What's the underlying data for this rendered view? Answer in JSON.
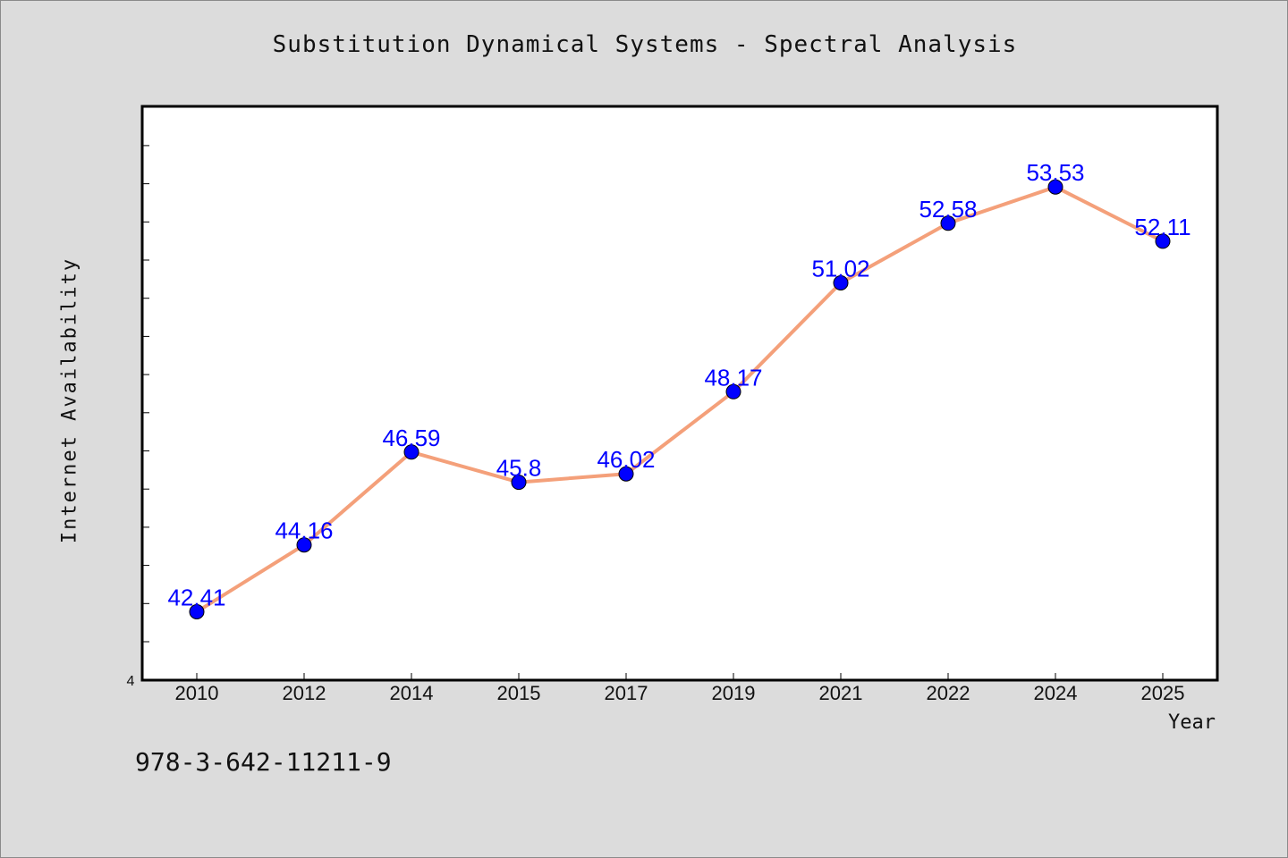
{
  "colors": {
    "background": "#dcdcdc",
    "plot_area": "#ffffff",
    "line": "#f4a07a",
    "marker": "#0000ff",
    "data_label": "#0000ff"
  },
  "footer": {
    "code": "978-3-642-11211-9"
  },
  "chart_data": {
    "type": "line",
    "title": "Substitution Dynamical Systems - Spectral Analysis",
    "xlabel": "Year",
    "ylabel": "Internet Availability",
    "categories": [
      "2010",
      "2012",
      "2014",
      "2015",
      "2017",
      "2019",
      "2021",
      "2022",
      "2024",
      "2025"
    ],
    "series": [
      {
        "values": [
          42.41,
          44.16,
          46.59,
          45.8,
          46.02,
          48.17,
          51.02,
          52.58,
          53.53,
          52.11
        ]
      }
    ],
    "data_labels": [
      "42.41",
      "44.16",
      "46.59",
      "45.8",
      "46.02",
      "48.17",
      "51.02",
      "52.58",
      "53.53",
      "52.11"
    ],
    "y_tick_label": "4",
    "ylim": [
      40.62,
      55.64
    ],
    "grid": false,
    "legend": "none",
    "markers": "filled-circle"
  }
}
